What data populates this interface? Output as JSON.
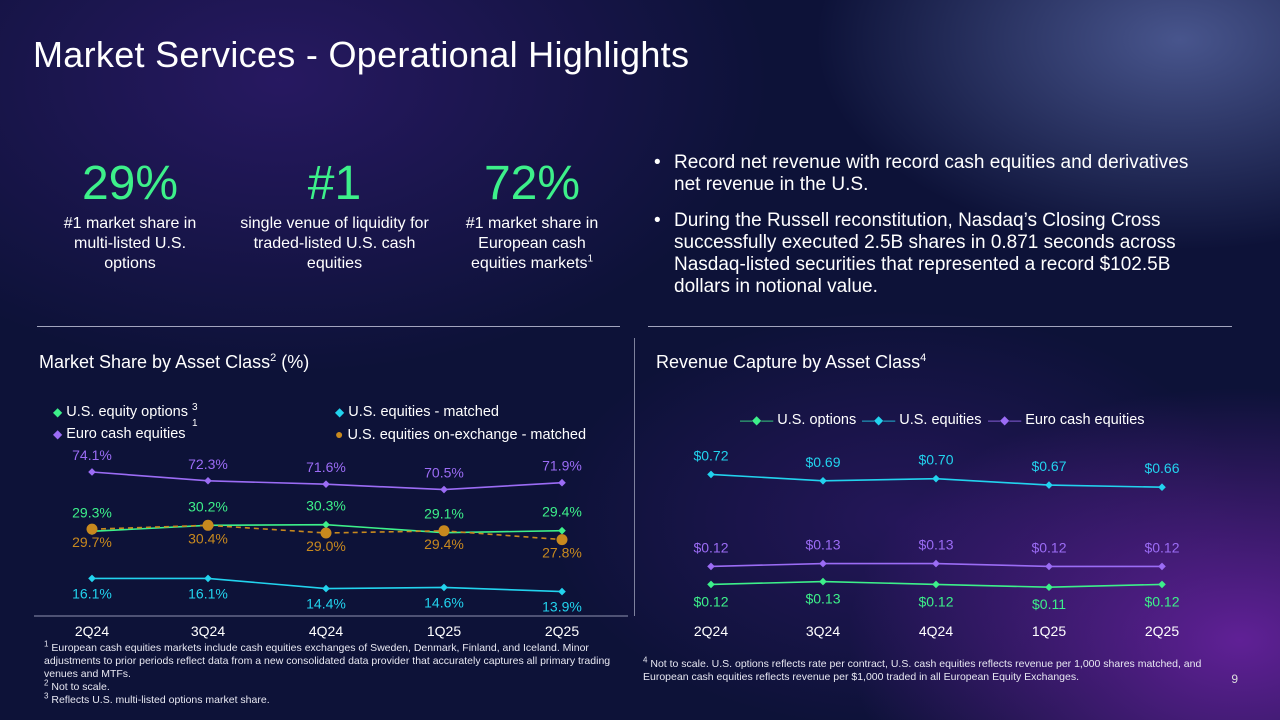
{
  "title": "Market Services - Operational Highlights",
  "stats": [
    {
      "value": "29%",
      "desc": "#1 market share in multi-listed U.S. options",
      "sup": ""
    },
    {
      "value": "#1",
      "desc": "single venue of liquidity for traded-listed U.S. cash equities",
      "sup": ""
    },
    {
      "value": "72%",
      "desc": "#1 market share in European cash equities markets",
      "sup": "1"
    }
  ],
  "bullets": [
    "Record net revenue with record cash equities and derivatives net revenue in the U.S.",
    "During the Russell reconstitution, Nasdaq’s Closing Cross successfully executed 2.5B shares in 0.871 seconds across Nasdaq-listed securities that represented a record $102.5B dollars in notional value."
  ],
  "left_chart": {
    "title": "Market Share by Asset Class",
    "title_sup": "2",
    "title_suffix": " (%)",
    "legend": [
      {
        "label": "U.S. equity options",
        "sup": "3",
        "sup2": "1"
      },
      {
        "label": "U.S. equities - matched"
      },
      {
        "label": "Euro cash equities"
      },
      {
        "label": "U.S. equities on-exchange - matched"
      }
    ]
  },
  "right_chart": {
    "title": "Revenue Capture by Asset Class",
    "title_sup": "4",
    "legend": [
      {
        "label": "U.S. options"
      },
      {
        "label": "U.S. equities"
      },
      {
        "label": "Euro cash equities"
      }
    ]
  },
  "chart_data": [
    {
      "type": "line",
      "title": "Market Share by Asset Class (%)",
      "categories": [
        "2Q24",
        "3Q24",
        "4Q24",
        "1Q25",
        "2Q25"
      ],
      "series": [
        {
          "name": "Euro cash equities",
          "color": "#9b6cf5",
          "values": [
            74.1,
            72.3,
            71.6,
            70.5,
            71.9
          ],
          "labels": [
            "74.1%",
            "72.3%",
            "71.6%",
            "70.5%",
            "71.9%"
          ]
        },
        {
          "name": "U.S. equity options",
          "color": "#3df08a",
          "values": [
            29.3,
            30.2,
            30.3,
            29.1,
            29.4
          ],
          "labels": [
            "29.3%",
            "30.2%",
            "30.3%",
            "29.1%",
            "29.4%"
          ]
        },
        {
          "name": "U.S. equities on-exchange - matched",
          "color": "#c8891e",
          "values": [
            29.7,
            30.4,
            29.0,
            29.4,
            27.8
          ],
          "labels": [
            "29.7%",
            "30.4%",
            "29.0%",
            "29.4%",
            "27.8%"
          ]
        },
        {
          "name": "U.S. equities - matched",
          "color": "#22d3ee",
          "values": [
            16.1,
            16.1,
            14.4,
            14.6,
            13.9
          ],
          "labels": [
            "16.1%",
            "16.1%",
            "14.4%",
            "14.6%",
            "13.9%"
          ]
        }
      ]
    },
    {
      "type": "line",
      "title": "Revenue Capture by Asset Class",
      "categories": [
        "2Q24",
        "3Q24",
        "4Q24",
        "1Q25",
        "2Q25"
      ],
      "series": [
        {
          "name": "U.S. equities",
          "color": "#22d3ee",
          "values": [
            0.72,
            0.69,
            0.7,
            0.67,
            0.66
          ],
          "labels": [
            "$0.72",
            "$0.69",
            "$0.70",
            "$0.67",
            "$0.66"
          ]
        },
        {
          "name": "Euro cash equities",
          "color": "#9b6cf5",
          "values": [
            0.12,
            0.13,
            0.13,
            0.12,
            0.12
          ],
          "labels": [
            "$0.12",
            "$0.13",
            "$0.13",
            "$0.12",
            "$0.12"
          ]
        },
        {
          "name": "U.S. options",
          "color": "#3df08a",
          "values": [
            0.12,
            0.13,
            0.12,
            0.11,
            0.12
          ],
          "labels": [
            "$0.12",
            "$0.13",
            "$0.12",
            "$0.11",
            "$0.12"
          ]
        }
      ]
    }
  ],
  "footnotes_left": [
    {
      "num": "1",
      "text": "European cash equities markets include cash equities exchanges of Sweden, Denmark, Finland, and Iceland. Minor adjustments to prior periods reflect data from a new consolidated data provider that accurately captures all primary trading venues and MTFs."
    },
    {
      "num": "2",
      "text": "Not to scale."
    },
    {
      "num": "3",
      "text": "Reflects U.S. multi-listed options market share."
    }
  ],
  "footnotes_right": [
    {
      "num": "4",
      "text": "Not to scale. U.S. options reflects rate per contract, U.S. cash equities reflects revenue per 1,000 shares matched, and European cash equities reflects revenue per $1,000 traded in all European Equity Exchanges."
    }
  ],
  "page_number": "9"
}
